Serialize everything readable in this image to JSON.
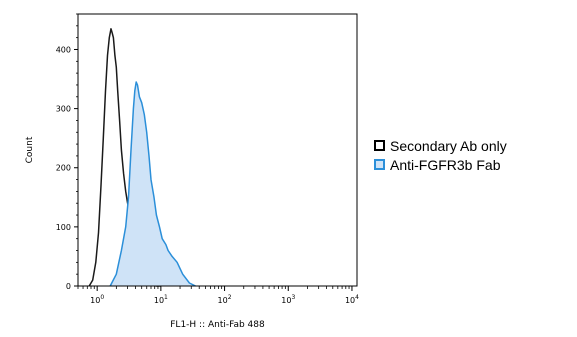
{
  "chart_data": {
    "type": "area",
    "xlabel": "FL1-H :: Anti-Fab 488",
    "ylabel": "Count",
    "x_scale": "log",
    "xlim": [
      0.5,
      12000
    ],
    "ylim": [
      0,
      460
    ],
    "x_ticks": [
      {
        "value": 1,
        "label": "10",
        "exp": "0"
      },
      {
        "value": 10,
        "label": "10",
        "exp": "1"
      },
      {
        "value": 100,
        "label": "10",
        "exp": "2"
      },
      {
        "value": 1000,
        "label": "10",
        "exp": "3"
      },
      {
        "value": 10000,
        "label": "10",
        "exp": "4"
      }
    ],
    "y_ticks": [
      0,
      100,
      200,
      300,
      400
    ],
    "grid": false,
    "legend_position": "right",
    "series": [
      {
        "name": "Secondary Ab only",
        "color": "#1a1a1a",
        "fill": "none",
        "x": [
          0.75,
          0.85,
          0.95,
          1.05,
          1.15,
          1.25,
          1.35,
          1.45,
          1.55,
          1.65,
          1.72,
          1.8,
          1.9,
          2.0,
          2.1,
          2.25,
          2.4,
          2.6,
          2.8,
          3.0,
          3.3,
          3.6,
          4.0,
          4.4,
          4.8,
          5.3,
          5.8,
          6.3,
          6.8,
          7.5,
          8.5,
          10
        ],
        "values": [
          0,
          10,
          40,
          90,
          170,
          250,
          330,
          390,
          420,
          435,
          428,
          420,
          390,
          370,
          330,
          280,
          230,
          190,
          160,
          140,
          120,
          100,
          80,
          60,
          40,
          20,
          10,
          5,
          2,
          1,
          0,
          0
        ]
      },
      {
        "name": "Anti-FGFR3b Fab",
        "color": "#2b8fd9",
        "fill": "#cfe3f7",
        "x": [
          1.6,
          2.0,
          2.4,
          2.8,
          3.1,
          3.4,
          3.7,
          3.9,
          4.1,
          4.3,
          4.6,
          5.0,
          5.5,
          6.0,
          6.5,
          7.0,
          7.8,
          8.5,
          9.5,
          10.5,
          12,
          13,
          15,
          18,
          22,
          28,
          35
        ],
        "values": [
          0,
          20,
          60,
          100,
          150,
          230,
          300,
          330,
          345,
          340,
          320,
          310,
          290,
          260,
          220,
          180,
          150,
          120,
          100,
          80,
          70,
          60,
          50,
          40,
          20,
          5,
          0
        ]
      }
    ]
  }
}
